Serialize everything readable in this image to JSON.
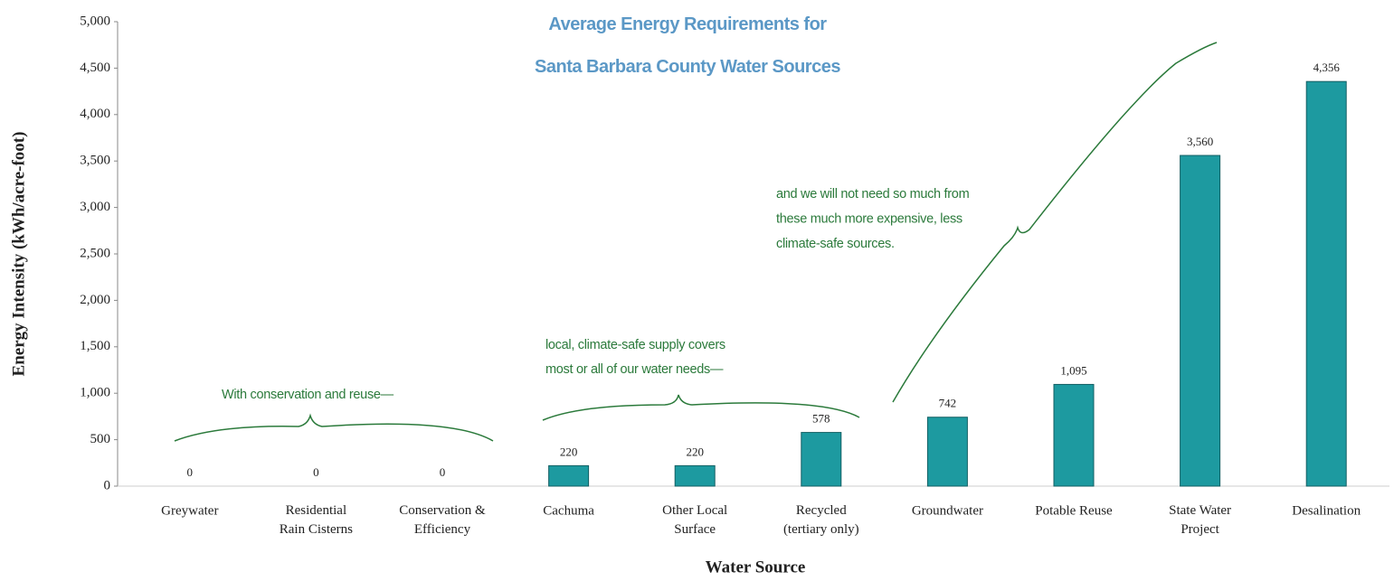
{
  "chart_data": {
    "type": "bar",
    "title": "Average Energy Requirements for\nSanta Barbara County Water Sources",
    "x_label": "Water Source",
    "y_label": "Energy Intensity (kWh/acre-foot)",
    "categories": [
      "Greywater",
      "Residential\nRain Cisterns",
      "Conservation &\nEfficiency",
      "Cachuma",
      "Other Local\nSurface",
      "Recycled\n(tertiary only)",
      "Groundwater",
      "Potable Reuse",
      "State Water\nProject",
      "Desalination"
    ],
    "values": [
      0,
      0,
      0,
      220,
      220,
      578,
      742,
      1095,
      3560,
      4356
    ],
    "value_labels": [
      "0",
      "0",
      "0",
      "220",
      "220",
      "578",
      "742",
      "1,095",
      "3,560",
      "4,356"
    ],
    "color": "#1d9aa0",
    "ylim": [
      0,
      5000
    ],
    "yticks": [
      0,
      500,
      {
        "value": 1000,
        "label": "1,000"
      },
      {
        "value": 1500,
        "label": "1,500"
      },
      {
        "value": 2000,
        "label": "2,000"
      },
      {
        "value": 2500,
        "label": "2,500"
      },
      {
        "value": 3000,
        "label": "3,000"
      },
      {
        "value": 3500,
        "label": "3,500"
      },
      {
        "value": 4000,
        "label": "4,000"
      },
      {
        "value": 4500,
        "label": "4,500"
      },
      {
        "value": 5000,
        "label": "5,000"
      }
    ],
    "grid": false,
    "annotations": [
      "With conservation and reuse—",
      "local, climate-safe supply covers\nmost or all of our water needs—",
      "and we will not need so much from\nthese much more expensive, less\nclimate-safe sources."
    ]
  }
}
